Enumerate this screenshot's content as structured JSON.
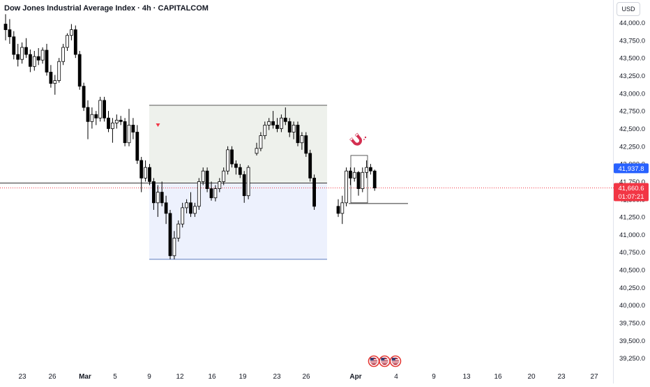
{
  "header": {
    "title": "Dow Jones Industrial Average Index · 4h · CAPITALCOM",
    "currency": "USD"
  },
  "colors": {
    "candle_up_body": "#ffffff",
    "candle_down_body": "#000000",
    "candle_border": "#000000",
    "range_upper_fill": "#eef1ec",
    "range_lower_fill": "#edf1fd",
    "range_lower_line": "#5b7bbf",
    "blue_label": "#2962ff",
    "red_label": "#f23645",
    "dotted_line": "#f23645",
    "magnet": "#d32f50"
  },
  "chart_data": {
    "type": "candlestick",
    "title": "Dow Jones Industrial Average Index · 4h · CAPITALCOM",
    "y_axis": {
      "ticks": [
        "44,000.0",
        "43,750.0",
        "43,500.0",
        "43,250.0",
        "43,000.0",
        "42,750.0",
        "42,500.0",
        "42,250.0",
        "42,000.0",
        "41,750.0",
        "41,500.0",
        "41,250.0",
        "41,000.0",
        "40,750.0",
        "40,500.0",
        "40,250.0",
        "40,000.0",
        "39,750.0",
        "39,500.0",
        "39,250.0"
      ],
      "range": [
        39180,
        44150
      ]
    },
    "x_axis": {
      "ticks": [
        "23",
        "26",
        "Mar",
        "5",
        "9",
        "12",
        "16",
        "19",
        "23",
        "26",
        "Apr",
        "4",
        "9",
        "13",
        "16",
        "20",
        "23",
        "27"
      ]
    },
    "price_labels": [
      {
        "value": 41937.8,
        "text": "41,937.8",
        "color": "blue"
      },
      {
        "value": 41660.6,
        "text": "41,660.6",
        "countdown": "01:07:21",
        "color": "red"
      }
    ],
    "range_box": {
      "upper": 42830,
      "mid": 41730,
      "lower": 40650
    },
    "horizontal_lines": [
      41730,
      41440
    ],
    "event_icons": 3,
    "candles": [
      [
        43980,
        44120,
        43750,
        43900
      ],
      [
        43900,
        44050,
        43700,
        43800
      ],
      [
        43800,
        43880,
        43480,
        43550
      ],
      [
        43550,
        43700,
        43380,
        43480
      ],
      [
        43480,
        43720,
        43420,
        43650
      ],
      [
        43650,
        43780,
        43500,
        43550
      ],
      [
        43550,
        43620,
        43300,
        43380
      ],
      [
        43380,
        43600,
        43320,
        43520
      ],
      [
        43520,
        43640,
        43400,
        43470
      ],
      [
        43470,
        43650,
        43420,
        43610
      ],
      [
        43610,
        43700,
        43250,
        43300
      ],
      [
        43300,
        43400,
        43080,
        43140
      ],
      [
        43140,
        43260,
        42980,
        43180
      ],
      [
        43180,
        43500,
        43150,
        43450
      ],
      [
        43450,
        43700,
        43400,
        43650
      ],
      [
        43650,
        43850,
        43600,
        43820
      ],
      [
        43820,
        43980,
        43750,
        43900
      ],
      [
        43900,
        43960,
        43500,
        43550
      ],
      [
        43550,
        43600,
        43050,
        43100
      ],
      [
        43100,
        43150,
        42750,
        42800
      ],
      [
        42800,
        42900,
        42350,
        42600
      ],
      [
        42600,
        42800,
        42500,
        42700
      ],
      [
        42700,
        42750,
        42550,
        42650
      ],
      [
        42650,
        42950,
        42600,
        42900
      ],
      [
        42900,
        42950,
        42600,
        42650
      ],
      [
        42650,
        42750,
        42450,
        42500
      ],
      [
        42500,
        42650,
        42300,
        42580
      ],
      [
        42580,
        42700,
        42500,
        42620
      ],
      [
        42620,
        42680,
        42550,
        42600
      ],
      [
        42600,
        42650,
        42250,
        42300
      ],
      [
        42300,
        42780,
        42250,
        42550
      ],
      [
        42550,
        42650,
        42350,
        42450
      ],
      [
        42450,
        42550,
        42000,
        42050
      ],
      [
        42050,
        42100,
        41600,
        41800
      ],
      [
        41800,
        42050,
        41750,
        41950
      ],
      [
        41950,
        42000,
        41700,
        41750
      ],
      [
        41750,
        41800,
        41350,
        41450
      ],
      [
        41450,
        41700,
        41250,
        41600
      ],
      [
        41600,
        41750,
        41400,
        41450
      ],
      [
        41450,
        41550,
        41150,
        41300
      ],
      [
        41300,
        41350,
        40650,
        40700
      ],
      [
        40700,
        41050,
        40650,
        40950
      ],
      [
        40950,
        41200,
        40900,
        41150
      ],
      [
        41150,
        41450,
        41100,
        41380
      ],
      [
        41380,
        41500,
        41300,
        41450
      ],
      [
        41450,
        41600,
        41250,
        41300
      ],
      [
        41300,
        41450,
        41250,
        41400
      ],
      [
        41400,
        41800,
        41350,
        41750
      ],
      [
        41750,
        41950,
        41700,
        41900
      ],
      [
        41900,
        41950,
        41600,
        41650
      ],
      [
        41650,
        41750,
        41480,
        41520
      ],
      [
        41520,
        41700,
        41470,
        41650
      ],
      [
        41650,
        41800,
        41600,
        41750
      ],
      [
        41750,
        41950,
        41700,
        41900
      ],
      [
        41900,
        42250,
        41850,
        42200
      ],
      [
        42200,
        42250,
        41950,
        42000
      ],
      [
        42000,
        42050,
        41850,
        41950
      ],
      [
        41950,
        42000,
        41800,
        41850
      ],
      [
        41850,
        41900,
        41450,
        41550
      ],
      [
        41550,
        41980,
        41500,
        41950
      ],
      [
        42150,
        42300,
        42120,
        42220
      ],
      [
        42220,
        42450,
        42180,
        42400
      ],
      [
        42400,
        42600,
        42350,
        42550
      ],
      [
        42550,
        42650,
        42480,
        42600
      ],
      [
        42600,
        42750,
        42500,
        42550
      ],
      [
        42550,
        42650,
        42450,
        42500
      ],
      [
        42500,
        42700,
        42450,
        42650
      ],
      [
        42650,
        42800,
        42550,
        42600
      ],
      [
        42600,
        42650,
        42380,
        42450
      ],
      [
        42450,
        42600,
        42350,
        42550
      ],
      [
        42550,
        42600,
        42250,
        42300
      ],
      [
        42300,
        42450,
        42200,
        42400
      ],
      [
        42400,
        42450,
        42100,
        42150
      ],
      [
        42150,
        42200,
        41750,
        41800
      ],
      [
        41800,
        41850,
        41350,
        41400
      ],
      [
        41400,
        41500,
        41250,
        41300
      ],
      [
        41300,
        41550,
        41150,
        41450
      ],
      [
        41450,
        41950,
        41400,
        41900
      ],
      [
        41900,
        41950,
        41700,
        41800
      ],
      [
        41800,
        41950,
        41750,
        41880
      ],
      [
        41880,
        41900,
        41550,
        41650
      ],
      [
        41650,
        41950,
        41600,
        41880
      ],
      [
        41880,
        42050,
        41800,
        41950
      ],
      [
        41950,
        42000,
        41850,
        41900
      ],
      [
        41900,
        41920,
        41620,
        41660
      ]
    ]
  }
}
